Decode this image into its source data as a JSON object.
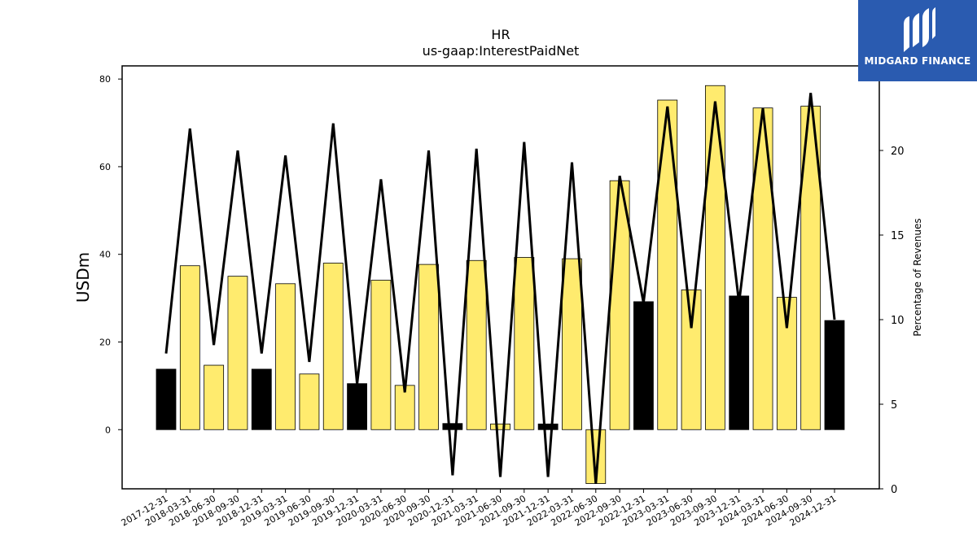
{
  "chart_data": {
    "type": "bar",
    "title": "HR",
    "subtitle": "us-gaap:InterestPaidNet",
    "ylabel": "USDm",
    "y2label": "Percentage of Revenues",
    "ylim": [
      -13.5,
      83
    ],
    "y2lim": [
      0,
      25
    ],
    "yticks": [
      0,
      20,
      40,
      60,
      80
    ],
    "y2ticks": [
      0,
      5,
      10,
      15,
      20
    ],
    "categories": [
      "2017-12-31",
      "2018-03-31",
      "2018-06-30",
      "2018-09-30",
      "2018-12-31",
      "2019-03-31",
      "2019-06-30",
      "2019-09-30",
      "2019-12-31",
      "2020-03-31",
      "2020-06-30",
      "2020-09-30",
      "2020-12-31",
      "2021-03-31",
      "2021-06-30",
      "2021-09-30",
      "2021-12-31",
      "2022-03-31",
      "2022-06-30",
      "2022-09-30",
      "2022-12-31",
      "2023-03-31",
      "2023-06-30",
      "2023-09-30",
      "2023-12-31",
      "2024-03-31",
      "2024-06-30",
      "2024-09-30",
      "2024-12-31"
    ],
    "series": [
      {
        "type": "bar",
        "values": [
          13.8,
          37.4,
          14.7,
          35.0,
          13.8,
          33.3,
          12.7,
          38.0,
          10.5,
          34.1,
          10.1,
          37.7,
          1.4,
          38.6,
          1.3,
          39.3,
          1.3,
          39.0,
          -12.3,
          56.8,
          29.2,
          75.2,
          31.9,
          78.5,
          30.5,
          73.4,
          30.2,
          73.8,
          24.9
        ]
      },
      {
        "type": "line",
        "axis": "right",
        "values": [
          8.0,
          21.3,
          8.5,
          20.0,
          8.0,
          19.7,
          7.5,
          21.6,
          6.2,
          18.3,
          5.7,
          20.0,
          0.8,
          20.1,
          0.7,
          20.5,
          0.7,
          19.3,
          0.3,
          18.5,
          11.0,
          22.6,
          9.5,
          22.9,
          11.0,
          22.5,
          9.5,
          23.4,
          10.0
        ]
      }
    ],
    "bar_colors": {
      "annual": "#000000",
      "quarterly": "#ffeb6e"
    },
    "line_color": "#000000"
  },
  "logo": {
    "name": "MIDGARD FINANCE",
    "color": "#2a5bb0"
  }
}
